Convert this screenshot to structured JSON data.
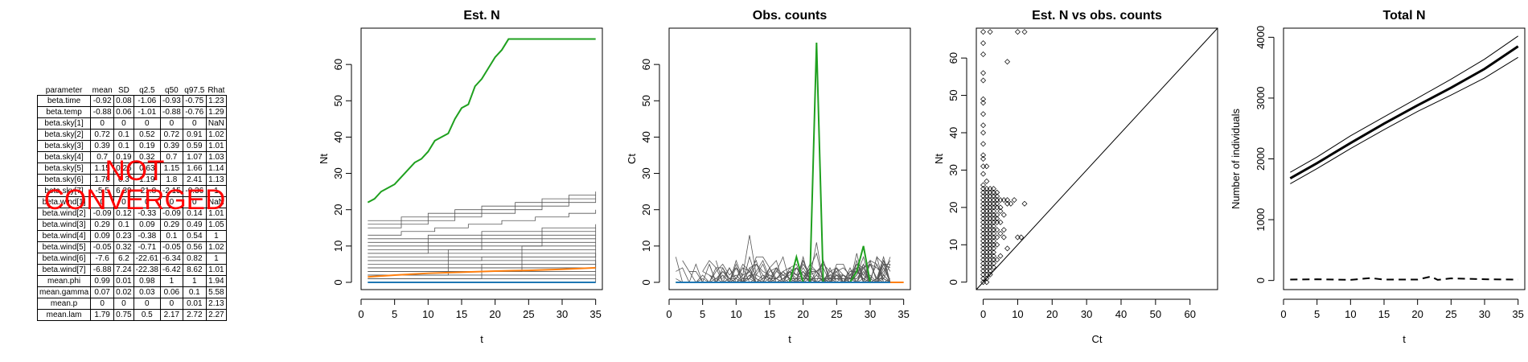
{
  "table": {
    "headers": [
      "parameter",
      "mean",
      "SD",
      "q2.5",
      "q50",
      "q97.5",
      "Rhat"
    ],
    "rows": [
      [
        "beta.time",
        "-0.92",
        "0.08",
        "-1.06",
        "-0.93",
        "-0.75",
        "1.23"
      ],
      [
        "beta.temp",
        "-0.88",
        "0.06",
        "-1.01",
        "-0.88",
        "-0.76",
        "1.29"
      ],
      [
        "beta.sky[1]",
        "0",
        "0",
        "0",
        "0",
        "0",
        "NaN"
      ],
      [
        "beta.sky[2]",
        "0.72",
        "0.1",
        "0.52",
        "0.72",
        "0.91",
        "1.02"
      ],
      [
        "beta.sky[3]",
        "0.39",
        "0.1",
        "0.19",
        "0.39",
        "0.59",
        "1.01"
      ],
      [
        "beta.sky[4]",
        "0.7",
        "0.19",
        "0.32",
        "0.7",
        "1.07",
        "1.03"
      ],
      [
        "beta.sky[5]",
        "1.15",
        "0.26",
        "0.63",
        "1.15",
        "1.66",
        "1.14"
      ],
      [
        "beta.sky[6]",
        "1.78",
        "0.3",
        "1.19",
        "1.8",
        "2.41",
        "1.13"
      ],
      [
        "beta.sky[7]",
        "-5.5",
        "6.39",
        "-21.8",
        "-2.15",
        "-0.36",
        "1"
      ],
      [
        "beta.wind[1]",
        "0",
        "0",
        "0",
        "0",
        "0",
        "NaN"
      ],
      [
        "beta.wind[2]",
        "-0.09",
        "0.12",
        "-0.33",
        "-0.09",
        "0.14",
        "1.01"
      ],
      [
        "beta.wind[3]",
        "0.29",
        "0.1",
        "0.09",
        "0.29",
        "0.49",
        "1.05"
      ],
      [
        "beta.wind[4]",
        "0.09",
        "0.23",
        "-0.38",
        "0.1",
        "0.54",
        "1"
      ],
      [
        "beta.wind[5]",
        "-0.05",
        "0.32",
        "-0.71",
        "-0.05",
        "0.56",
        "1.02"
      ],
      [
        "beta.wind[6]",
        "-7.6",
        "6.2",
        "-22.61",
        "-6.34",
        "0.82",
        "1"
      ],
      [
        "beta.wind[7]",
        "-6.88",
        "7.24",
        "-22.38",
        "-6.42",
        "8.62",
        "1.01"
      ],
      [
        "mean.phi",
        "0.99",
        "0.01",
        "0.98",
        "1",
        "1",
        "1.94"
      ],
      [
        "mean.gamma",
        "0.07",
        "0.02",
        "0.03",
        "0.06",
        "0.1",
        "5.58"
      ],
      [
        "mean.p",
        "0",
        "0",
        "0",
        "0",
        "0.01",
        "2.13"
      ],
      [
        "mean.lam",
        "1.79",
        "0.75",
        "0.5",
        "2.17",
        "2.72",
        "2.27"
      ]
    ]
  },
  "banner": {
    "line1": "NOT",
    "line2": "CONVERGED",
    "color": "#ff0000"
  },
  "chart_data": [
    {
      "type": "line",
      "title": "Est. N",
      "xlabel": "t",
      "ylabel": "Nt",
      "xlim": [
        0,
        36
      ],
      "ylim": [
        -2,
        70
      ],
      "xticks": [
        0,
        5,
        10,
        15,
        20,
        25,
        30,
        35
      ],
      "yticks": [
        0,
        10,
        20,
        30,
        40,
        50,
        60
      ],
      "gray_levels_start_end": [
        [
          17,
          25
        ],
        [
          16,
          24
        ],
        [
          15,
          23
        ],
        [
          13,
          20
        ],
        [
          12,
          16
        ],
        [
          11,
          15
        ],
        [
          10,
          14
        ],
        [
          9,
          13
        ],
        [
          8,
          12
        ],
        [
          8,
          11
        ],
        [
          7,
          10
        ],
        [
          6,
          9
        ],
        [
          6,
          8
        ],
        [
          5,
          8
        ],
        [
          4,
          7
        ],
        [
          4,
          6
        ],
        [
          3,
          6
        ],
        [
          3,
          5
        ],
        [
          2,
          5
        ],
        [
          2,
          4
        ],
        [
          1,
          3
        ],
        [
          1,
          2
        ],
        [
          0,
          1
        ]
      ],
      "series": [
        {
          "color": "#1fa01f",
          "x": [
            1,
            2,
            3,
            4,
            5,
            6,
            7,
            8,
            9,
            10,
            11,
            12,
            13,
            14,
            15,
            16,
            17,
            18,
            19,
            20,
            21,
            22,
            23,
            24,
            25,
            26,
            27,
            28,
            29,
            30,
            31,
            32,
            33,
            34,
            35
          ],
          "values": [
            22,
            23,
            25,
            26,
            27,
            29,
            31,
            33,
            34,
            36,
            39,
            40,
            41,
            45,
            48,
            49,
            54,
            56,
            59,
            62,
            64,
            67,
            67,
            67,
            67,
            67,
            67,
            67,
            67,
            67,
            67,
            67,
            67,
            67,
            67
          ]
        },
        {
          "color": "#ff7f0e",
          "x": [
            1,
            5,
            10,
            15,
            20,
            25,
            30,
            35
          ],
          "values": [
            1.5,
            2,
            2.5,
            2.8,
            3.1,
            3.3,
            3.6,
            4
          ]
        },
        {
          "color": "#1f77b4",
          "x": [
            1,
            35
          ],
          "values": [
            0,
            0
          ]
        }
      ]
    },
    {
      "type": "line",
      "title": "Obs. counts",
      "xlabel": "t",
      "ylabel": "Ct",
      "xlim": [
        0,
        36
      ],
      "ylim": [
        -2,
        70
      ],
      "xticks": [
        0,
        5,
        10,
        15,
        20,
        25,
        30,
        35
      ],
      "yticks": [
        0,
        10,
        20,
        30,
        40,
        50,
        60
      ],
      "series": [
        {
          "color": "#1fa01f",
          "x": [
            1,
            2,
            3,
            4,
            5,
            6,
            7,
            8,
            9,
            10,
            11,
            12,
            13,
            14,
            15,
            16,
            17,
            18,
            19,
            20,
            21,
            22,
            23,
            24,
            25,
            26,
            27,
            28,
            29,
            30,
            31,
            32,
            33
          ],
          "values": [
            0,
            0,
            0,
            0,
            0,
            0,
            0,
            0,
            0,
            0,
            0,
            0,
            0,
            0,
            0,
            0,
            0,
            0,
            7,
            0,
            0,
            66,
            0,
            0,
            0,
            0,
            0,
            3,
            10,
            0,
            0,
            0,
            0
          ]
        },
        {
          "color": "#ff7f0e",
          "x": [
            33,
            35
          ],
          "values": [
            0,
            0
          ]
        },
        {
          "color": "#1f77b4",
          "x": [
            1,
            33
          ],
          "values": [
            0,
            0
          ]
        }
      ]
    },
    {
      "type": "scatter",
      "title": "Est. N vs obs. counts",
      "xlabel": "Ct",
      "ylabel": "Nt",
      "xlim": [
        -2,
        68
      ],
      "ylim": [
        -2,
        68
      ],
      "xticks": [
        0,
        10,
        20,
        30,
        40,
        50,
        60
      ],
      "yticks": [
        0,
        10,
        20,
        30,
        40,
        50,
        60
      ],
      "points": [
        [
          0,
          67
        ],
        [
          2,
          67
        ],
        [
          10,
          67
        ],
        [
          12,
          67
        ],
        [
          0,
          64
        ],
        [
          0,
          61
        ],
        [
          7,
          59
        ],
        [
          0,
          56
        ],
        [
          0,
          54
        ],
        [
          0,
          49
        ],
        [
          0,
          48
        ],
        [
          0,
          45
        ],
        [
          0,
          42
        ],
        [
          0,
          40
        ],
        [
          0,
          37
        ],
        [
          0,
          34
        ],
        [
          0,
          33
        ],
        [
          0,
          31
        ],
        [
          1,
          31
        ],
        [
          0,
          29
        ],
        [
          1,
          27
        ],
        [
          0,
          26
        ],
        [
          0,
          25
        ],
        [
          1,
          25
        ],
        [
          2,
          25
        ],
        [
          3,
          25
        ],
        [
          0,
          24
        ],
        [
          1,
          24
        ],
        [
          2,
          24
        ],
        [
          3,
          24
        ],
        [
          4,
          24
        ],
        [
          0,
          23
        ],
        [
          1,
          23
        ],
        [
          2,
          23
        ],
        [
          3,
          23
        ],
        [
          4,
          23
        ],
        [
          5,
          22
        ],
        [
          6,
          22
        ],
        [
          7,
          22
        ],
        [
          9,
          22
        ],
        [
          0,
          22
        ],
        [
          1,
          22
        ],
        [
          2,
          22
        ],
        [
          3,
          22
        ],
        [
          4,
          22
        ],
        [
          0,
          21
        ],
        [
          1,
          21
        ],
        [
          2,
          21
        ],
        [
          3,
          21
        ],
        [
          4,
          21
        ],
        [
          7,
          21
        ],
        [
          8,
          21
        ],
        [
          12,
          21
        ],
        [
          0,
          20
        ],
        [
          1,
          20
        ],
        [
          2,
          20
        ],
        [
          3,
          20
        ],
        [
          4,
          20
        ],
        [
          5,
          20
        ],
        [
          0,
          19
        ],
        [
          1,
          19
        ],
        [
          2,
          19
        ],
        [
          3,
          19
        ],
        [
          5,
          19
        ],
        [
          0,
          18
        ],
        [
          1,
          18
        ],
        [
          2,
          18
        ],
        [
          3,
          18
        ],
        [
          4,
          18
        ],
        [
          6,
          18
        ],
        [
          0,
          17
        ],
        [
          1,
          17
        ],
        [
          2,
          17
        ],
        [
          3,
          17
        ],
        [
          4,
          17
        ],
        [
          0,
          16
        ],
        [
          1,
          16
        ],
        [
          2,
          16
        ],
        [
          3,
          16
        ],
        [
          4,
          16
        ],
        [
          5,
          16
        ],
        [
          0,
          15
        ],
        [
          1,
          15
        ],
        [
          2,
          15
        ],
        [
          3,
          15
        ],
        [
          0,
          14
        ],
        [
          1,
          14
        ],
        [
          2,
          14
        ],
        [
          3,
          14
        ],
        [
          4,
          14
        ],
        [
          6,
          14
        ],
        [
          0,
          13
        ],
        [
          1,
          13
        ],
        [
          2,
          13
        ],
        [
          3,
          13
        ],
        [
          5,
          13
        ],
        [
          0,
          12
        ],
        [
          1,
          12
        ],
        [
          2,
          12
        ],
        [
          3,
          12
        ],
        [
          4,
          12
        ],
        [
          6,
          12
        ],
        [
          10,
          12
        ],
        [
          11,
          12
        ],
        [
          0,
          11
        ],
        [
          1,
          11
        ],
        [
          2,
          11
        ],
        [
          3,
          11
        ],
        [
          0,
          10
        ],
        [
          1,
          10
        ],
        [
          2,
          10
        ],
        [
          3,
          10
        ],
        [
          4,
          10
        ],
        [
          0,
          9
        ],
        [
          1,
          9
        ],
        [
          2,
          9
        ],
        [
          3,
          9
        ],
        [
          7,
          9
        ],
        [
          0,
          8
        ],
        [
          1,
          8
        ],
        [
          2,
          8
        ],
        [
          3,
          8
        ],
        [
          0,
          7
        ],
        [
          1,
          7
        ],
        [
          2,
          7
        ],
        [
          3,
          7
        ],
        [
          5,
          7
        ],
        [
          0,
          6
        ],
        [
          1,
          6
        ],
        [
          2,
          6
        ],
        [
          3,
          6
        ],
        [
          4,
          6
        ],
        [
          0,
          5
        ],
        [
          1,
          5
        ],
        [
          2,
          5
        ],
        [
          3,
          5
        ],
        [
          0,
          4
        ],
        [
          1,
          4
        ],
        [
          2,
          4
        ],
        [
          3,
          4
        ],
        [
          0,
          3
        ],
        [
          1,
          3
        ],
        [
          2,
          3
        ],
        [
          0,
          2
        ],
        [
          1,
          2
        ],
        [
          2,
          2
        ],
        [
          0,
          1
        ],
        [
          1,
          1
        ],
        [
          0,
          0
        ],
        [
          1,
          0
        ]
      ],
      "reference_line": "y = x"
    },
    {
      "type": "line",
      "title": "Total N",
      "xlabel": "t",
      "ylabel": "Number of individuals",
      "xlim": [
        0,
        36
      ],
      "ylim": [
        -150,
        4150
      ],
      "xticks": [
        0,
        5,
        10,
        15,
        20,
        25,
        30,
        35
      ],
      "yticks": [
        0,
        1000,
        2000,
        3000,
        4000
      ],
      "series": [
        {
          "style": "thick",
          "x": [
            1,
            5,
            10,
            15,
            20,
            25,
            30,
            35
          ],
          "values": [
            1680,
            1930,
            2260,
            2580,
            2880,
            3170,
            3480,
            3850
          ]
        },
        {
          "style": "thin",
          "x": [
            1,
            5,
            10,
            15,
            20,
            25,
            30,
            35
          ],
          "values": [
            1780,
            2030,
            2380,
            2690,
            3000,
            3310,
            3640,
            4020
          ]
        },
        {
          "style": "thin",
          "x": [
            1,
            5,
            10,
            15,
            20,
            25,
            30,
            35
          ],
          "values": [
            1590,
            1840,
            2170,
            2480,
            2780,
            3050,
            3330,
            3670
          ]
        },
        {
          "style": "dashed",
          "x": [
            1,
            5,
            10,
            13,
            15,
            20,
            22,
            23,
            25,
            30,
            35
          ],
          "values": [
            15,
            20,
            10,
            40,
            15,
            15,
            65,
            10,
            35,
            20,
            15
          ]
        }
      ]
    }
  ]
}
